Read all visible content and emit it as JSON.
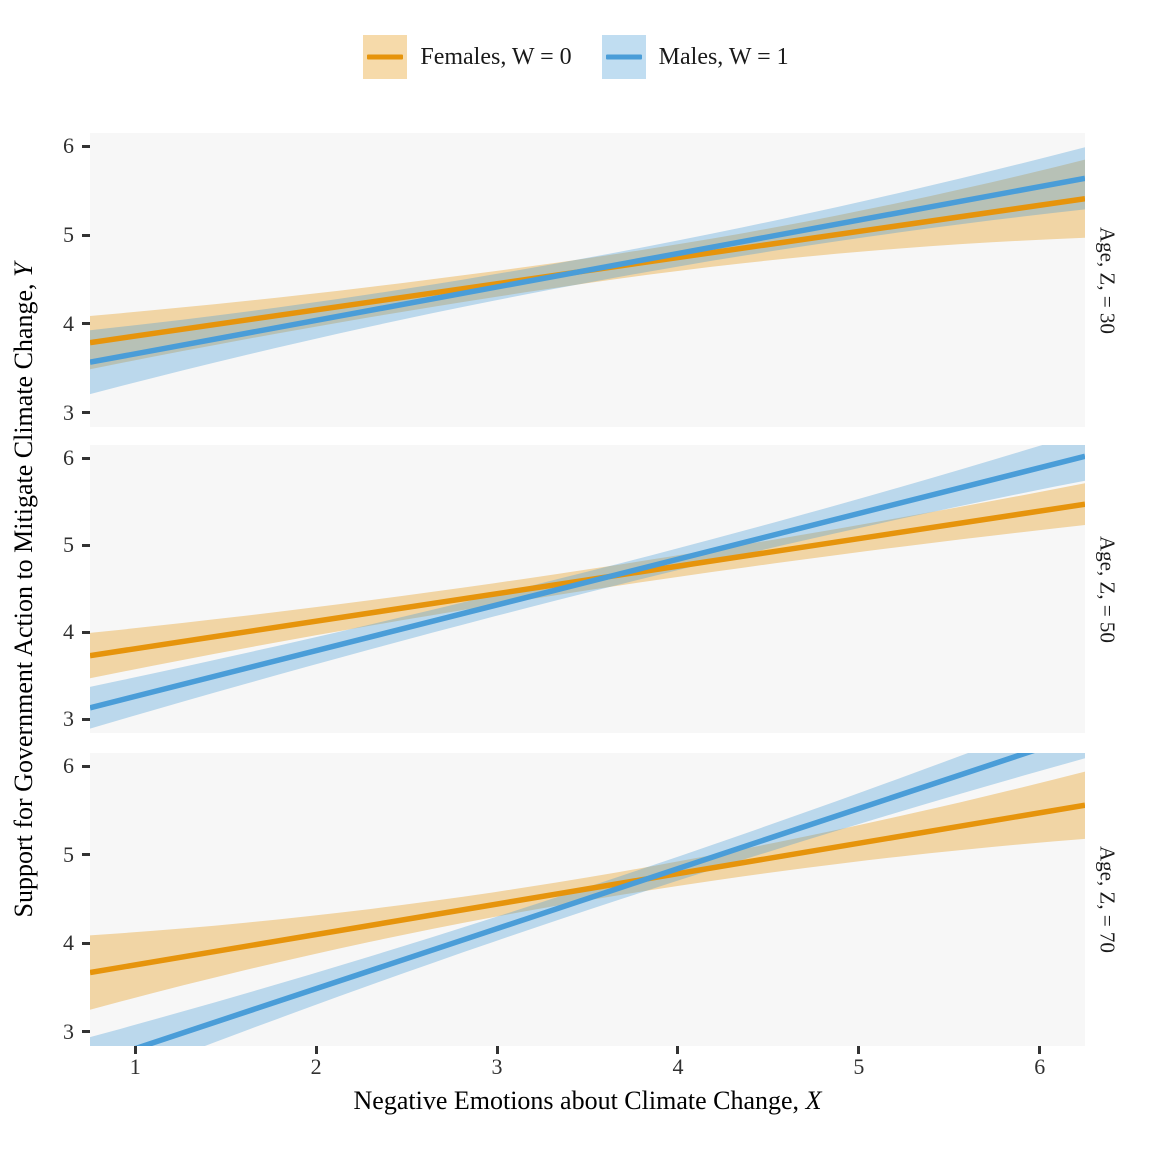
{
  "chart_data": {
    "type": "line",
    "title": "",
    "x_range": [
      0.75,
      6.25
    ],
    "y_range": [
      2.84,
      6.15
    ],
    "x_ticks": [
      1,
      2,
      3,
      4,
      5,
      6
    ],
    "y_ticks": [
      3,
      4,
      5,
      6
    ],
    "grid": false,
    "panel_background": "#F7F7F7",
    "tick_color": "#333333",
    "legend_position": "top",
    "xlabel_text": "Negative Emotions about Climate Change, ",
    "xlabel_italic": "X",
    "ylabel_text": "Support for Government Action to Mitigate Climate Change, ",
    "ylabel_italic": "Y",
    "series_meta": [
      {
        "name": "Females, W = 0",
        "color": "#E6940C",
        "fill_opacity": 0.35
      },
      {
        "name": "Males, W = 1",
        "color": "#4A9DD8",
        "fill_opacity": 0.35
      }
    ],
    "facets": [
      {
        "label": "Age, Z, = 30",
        "series": [
          {
            "name": "Females, W = 0",
            "x": [
              0.75,
              6.25
            ],
            "y": [
              3.79,
              5.41
            ],
            "ci_half_width": {
              "left": 0.3,
              "mid": 0.14,
              "right": 0.44
            }
          },
          {
            "name": "Males, W = 1",
            "x": [
              0.75,
              6.25
            ],
            "y": [
              3.57,
              5.64
            ],
            "ci_half_width": {
              "left": 0.36,
              "mid": 0.14,
              "right": 0.35
            }
          }
        ]
      },
      {
        "label": "Age, Z, = 50",
        "series": [
          {
            "name": "Females, W = 0",
            "x": [
              0.75,
              6.25
            ],
            "y": [
              3.73,
              5.47
            ],
            "ci_half_width": {
              "left": 0.26,
              "mid": 0.12,
              "right": 0.24
            }
          },
          {
            "name": "Males, W = 1",
            "x": [
              0.75,
              6.25
            ],
            "y": [
              3.13,
              6.02
            ],
            "ci_half_width": {
              "left": 0.24,
              "mid": 0.12,
              "right": 0.28
            }
          }
        ]
      },
      {
        "label": "Age, Z, = 70",
        "series": [
          {
            "name": "Females, W = 0",
            "x": [
              0.75,
              6.25
            ],
            "y": [
              3.67,
              5.56
            ],
            "ci_half_width": {
              "left": 0.42,
              "mid": 0.13,
              "right": 0.38
            }
          },
          {
            "name": "Males, W = 1",
            "x": [
              0.75,
              6.25
            ],
            "y": [
              2.64,
              6.37
            ],
            "ci_half_width": {
              "left": 0.3,
              "mid": 0.13,
              "right": 0.28
            }
          }
        ]
      }
    ]
  }
}
